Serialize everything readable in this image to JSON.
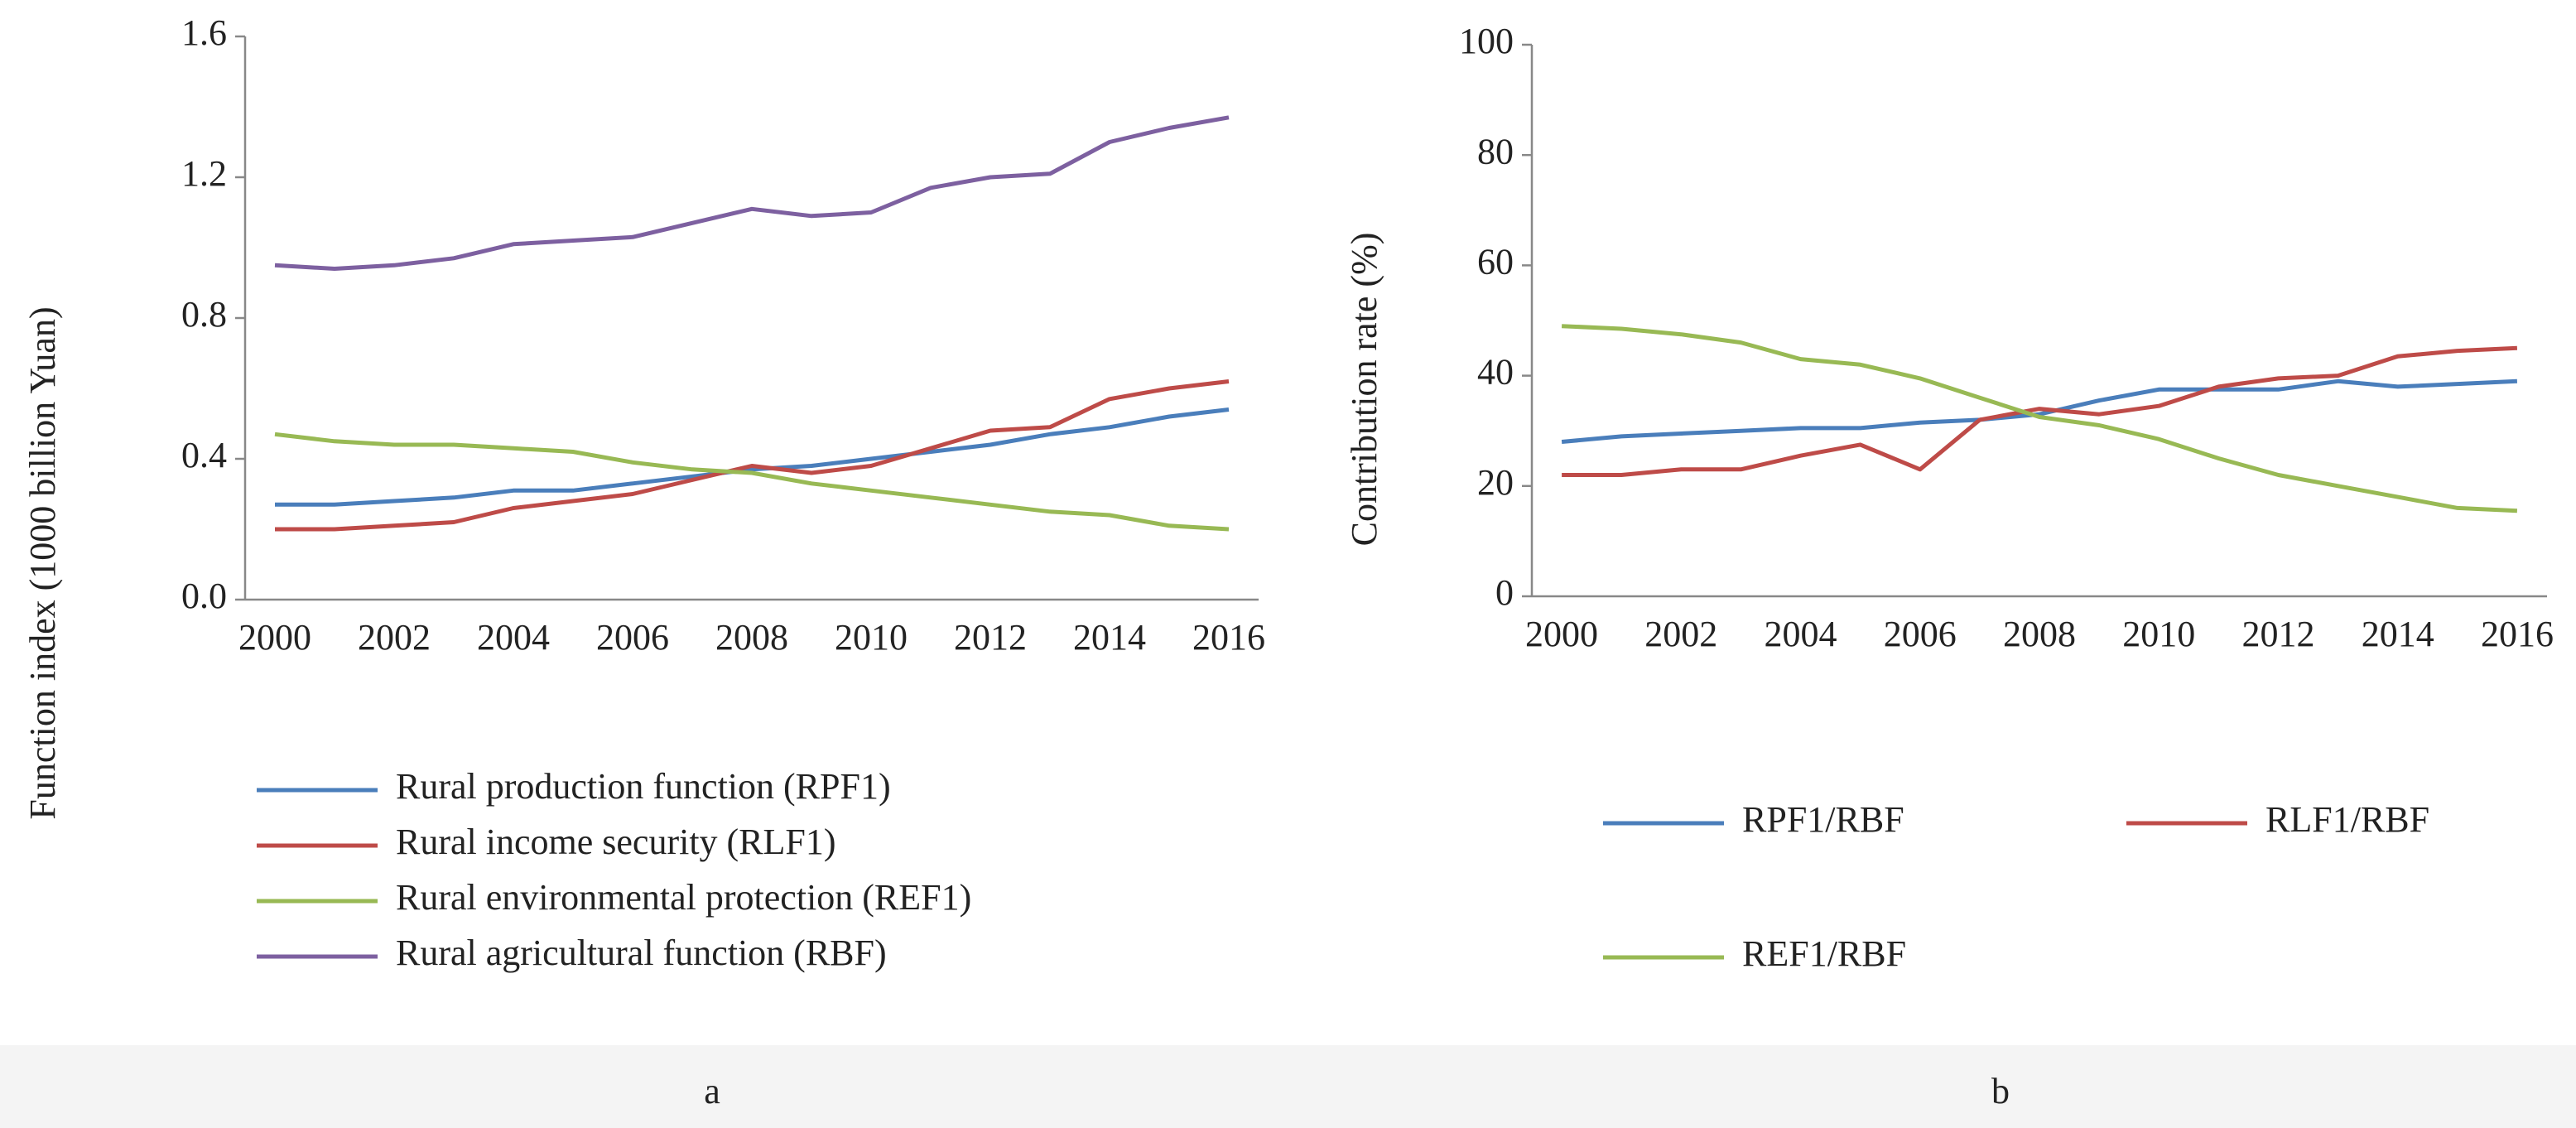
{
  "chart_data": [
    {
      "type": "line",
      "caption": "a",
      "ylabel": "Function index (1000 billion Yuan)",
      "categories": [
        "2000",
        null,
        "2002",
        null,
        "2004",
        null,
        "2006",
        null,
        "2008",
        null,
        "2010",
        null,
        "2012",
        null,
        "2014",
        null,
        "2016"
      ],
      "ylim": [
        0,
        1.6
      ],
      "yticks": [
        {
          "value": 0,
          "label": "0.0"
        },
        0.4,
        0.8,
        1.2,
        1.6
      ],
      "series": [
        {
          "name": "Rural production function (RPF1)",
          "color": "#4a7ebb",
          "values": [
            0.27,
            0.27,
            0.28,
            0.29,
            0.31,
            0.31,
            0.33,
            0.35,
            0.37,
            0.38,
            0.4,
            0.42,
            0.44,
            0.47,
            0.49,
            0.52,
            0.54
          ]
        },
        {
          "name": "Rural income security (RLF1)",
          "color": "#be4b48",
          "values": [
            0.2,
            0.2,
            0.21,
            0.22,
            0.26,
            0.28,
            0.3,
            0.34,
            0.38,
            0.36,
            0.38,
            0.43,
            0.48,
            0.49,
            0.57,
            0.6,
            0.62
          ]
        },
        {
          "name": "Rural environmental protection (REF1)",
          "color": "#98b954",
          "values": [
            0.47,
            0.45,
            0.44,
            0.44,
            0.43,
            0.42,
            0.39,
            0.37,
            0.36,
            0.33,
            0.31,
            0.29,
            0.27,
            0.25,
            0.24,
            0.21,
            0.2
          ]
        },
        {
          "name": "Rural agricultural function (RBF)",
          "color": "#7d60a0",
          "values": [
            0.95,
            0.94,
            0.95,
            0.97,
            1.01,
            1.02,
            1.03,
            1.07,
            1.11,
            1.09,
            1.1,
            1.17,
            1.2,
            1.21,
            1.3,
            1.34,
            1.37
          ]
        }
      ]
    },
    {
      "type": "line",
      "caption": "b",
      "ylabel": "Contribution rate (%)",
      "categories": [
        "2000",
        null,
        "2002",
        null,
        "2004",
        null,
        "2006",
        null,
        "2008",
        null,
        "2010",
        null,
        "2012",
        null,
        "2014",
        null,
        "2016"
      ],
      "ylim": [
        0,
        100
      ],
      "yticks": [
        0,
        20,
        40,
        60,
        80,
        100
      ],
      "series": [
        {
          "name": "RPF1/RBF",
          "color": "#4a7ebb",
          "values": [
            28,
            29,
            29.5,
            30,
            30.5,
            30.5,
            31.5,
            32,
            33,
            35.5,
            37.5,
            37.5,
            37.5,
            39,
            38,
            38.5,
            39
          ]
        },
        {
          "name": "RLF1/RBF",
          "color": "#be4b48",
          "values": [
            22,
            22,
            23,
            23,
            25.5,
            27.5,
            23,
            32,
            34,
            33,
            34.5,
            38,
            39.5,
            40,
            43.5,
            44.5,
            45
          ]
        },
        {
          "name": "REF1/RBF",
          "color": "#98b954",
          "values": [
            49,
            48.5,
            47.5,
            46,
            43,
            42,
            39.5,
            36,
            32.5,
            31,
            28.5,
            25,
            22,
            20,
            18,
            16,
            15.5
          ]
        }
      ]
    }
  ]
}
